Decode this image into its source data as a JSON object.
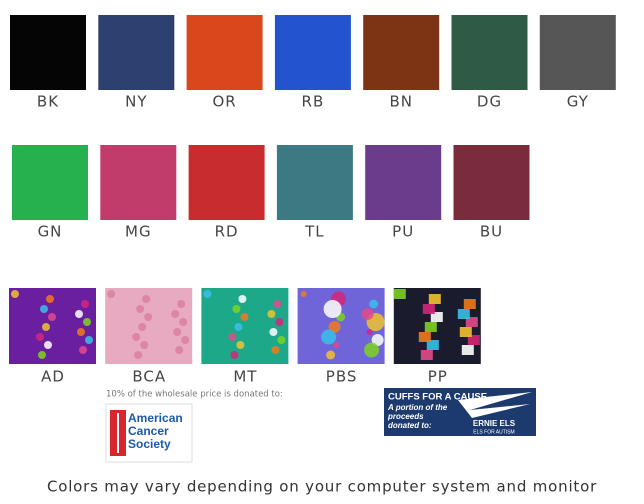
{
  "solid_rows": [
    {
      "items": [
        {
          "label": "BK",
          "color": "#050505"
        },
        {
          "label": "NY",
          "color": "#2d4070"
        },
        {
          "label": "OR",
          "color": "#d9481c"
        },
        {
          "label": "RB",
          "color": "#2353cf"
        },
        {
          "label": "BN",
          "color": "#7c3414"
        },
        {
          "label": "DG",
          "color": "#2f5a46"
        },
        {
          "label": "GY",
          "color": "#565656"
        }
      ]
    },
    {
      "items": [
        {
          "label": "GN",
          "color": "#27b04e"
        },
        {
          "label": "MG",
          "color": "#c13b6b"
        },
        {
          "label": "RD",
          "color": "#c92c2e"
        },
        {
          "label": "TL",
          "color": "#3b7a82"
        },
        {
          "label": "PU",
          "color": "#6b3c8c"
        },
        {
          "label": "BU",
          "color": "#7a2b3c"
        }
      ]
    }
  ],
  "prints": [
    {
      "label": "AD",
      "color": "#6a1fa0"
    },
    {
      "label": "BCA",
      "color": "#e8aac0"
    },
    {
      "label": "MT",
      "color": "#1ea88a"
    },
    {
      "label": "PBS",
      "color": "#6f64d8"
    },
    {
      "label": "PP",
      "color": "#1b1b2e"
    }
  ],
  "donation_note": "10% of the wholesale price is donated to:",
  "acs_logo": "American Cancer Society",
  "cause_box": {
    "title": "CUFFS FOR A CAUSE",
    "text": "A portion of the proceeds donated to:",
    "brand": "ERNIE ELS",
    "brand_sub": "ELS FOR AUTISM"
  },
  "footer": "Colors may vary depending on your computer system and monitor"
}
